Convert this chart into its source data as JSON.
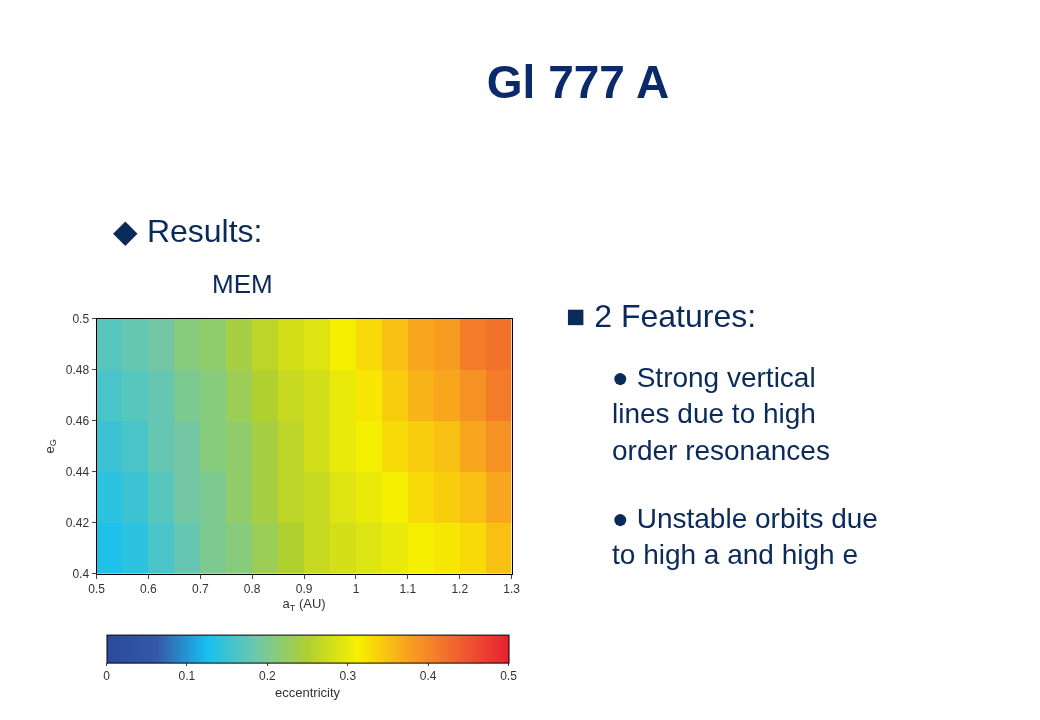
{
  "chart_data": {
    "type": "heatmap",
    "title": "Gl 777 A",
    "xlabel": "a$_{T}$ (AU)",
    "ylabel": "e$_{G}$",
    "clabel": "eccentricity",
    "annotations": [
      "◆ Results:",
      "MEM",
      "■ 2 Features:",
      "● Strong vertical lines due to high order resonances",
      "● Unstable orbits due to high a and high e"
    ],
    "x": [
      0.525,
      0.575,
      0.625,
      0.675,
      0.725,
      0.775,
      0.825,
      0.875,
      0.925,
      0.975,
      1.025,
      1.075,
      1.125,
      1.175,
      1.225,
      1.275
    ],
    "cells": [
      [
        0.17,
        0.18,
        0.19,
        0.21,
        0.22,
        0.24,
        0.26,
        0.28,
        0.29,
        0.31,
        0.33,
        0.35,
        0.37,
        0.38,
        0.41,
        0.42
      ],
      [
        0.16,
        0.17,
        0.18,
        0.2,
        0.21,
        0.23,
        0.25,
        0.27,
        0.28,
        0.3,
        0.32,
        0.34,
        0.36,
        0.37,
        0.39,
        0.41
      ],
      [
        0.15,
        0.16,
        0.18,
        0.19,
        0.21,
        0.22,
        0.24,
        0.26,
        0.28,
        0.3,
        0.31,
        0.33,
        0.34,
        0.35,
        0.37,
        0.39
      ],
      [
        0.14,
        0.15,
        0.17,
        0.19,
        0.2,
        0.22,
        0.24,
        0.26,
        0.27,
        0.29,
        0.3,
        0.31,
        0.33,
        0.34,
        0.35,
        0.37
      ],
      [
        0.13,
        0.14,
        0.16,
        0.18,
        0.2,
        0.21,
        0.23,
        0.25,
        0.27,
        0.28,
        0.29,
        0.3,
        0.31,
        0.32,
        0.33,
        0.35
      ]
    ],
    "colors": [
      "#2a4a9a",
      "#3558a8",
      "#18c0f0",
      "#70c8a8",
      "#b0d030",
      "#f8f000",
      "#f8a020",
      "#f06030",
      "#e82030"
    ],
    "xlim": [
      0.5,
      1.3
    ],
    "xticks": [
      0.5,
      0.6,
      0.7,
      0.8,
      0.9,
      1,
      1.1,
      1.2,
      1.3
    ],
    "ylim": [
      0.4,
      0.5
    ],
    "yticks": [
      0.4,
      0.42,
      0.44,
      0.46,
      0.48,
      0.5
    ],
    "clim": [
      0,
      0.5
    ],
    "cticks": [
      0,
      0.1,
      0.2,
      0.3,
      0.4,
      0.5
    ]
  }
}
